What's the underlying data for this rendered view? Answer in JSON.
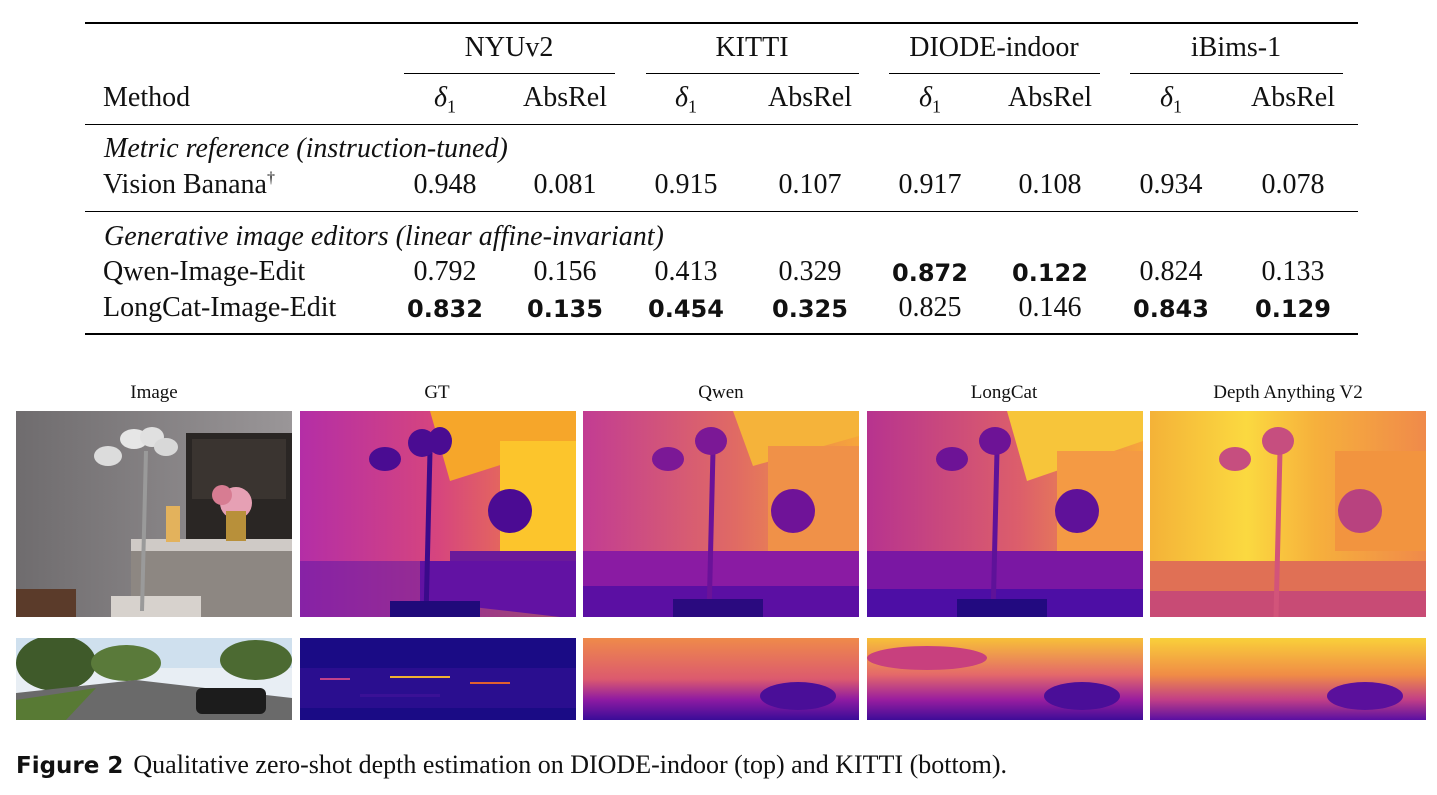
{
  "table": {
    "method_header": "Method",
    "groups": [
      "NYUv2",
      "KITTI",
      "DIODE-indoor",
      "iBims-1"
    ],
    "metric_delta_symbol": "δ",
    "metric_delta_subscript": "1",
    "metric_absrel": "AbsRel",
    "sections": [
      {
        "title": "Metric reference (instruction-tuned)",
        "rows": [
          {
            "method": "Vision Banana",
            "dagger": "†",
            "values": [
              "0.948",
              "0.081",
              "0.915",
              "0.107",
              "0.917",
              "0.108",
              "0.934",
              "0.078"
            ],
            "bold": [
              false,
              false,
              false,
              false,
              false,
              false,
              false,
              false
            ]
          }
        ]
      },
      {
        "title": "Generative image editors (linear affine-invariant)",
        "rows": [
          {
            "method": "Qwen-Image-Edit",
            "dagger": "",
            "values": [
              "0.792",
              "0.156",
              "0.413",
              "0.329",
              "0.872",
              "0.122",
              "0.824",
              "0.133"
            ],
            "bold": [
              false,
              false,
              false,
              false,
              true,
              true,
              false,
              false
            ]
          },
          {
            "method": "LongCat-Image-Edit",
            "dagger": "",
            "values": [
              "0.832",
              "0.135",
              "0.454",
              "0.325",
              "0.825",
              "0.146",
              "0.843",
              "0.129"
            ],
            "bold": [
              true,
              true,
              true,
              true,
              false,
              false,
              true,
              true
            ]
          }
        ]
      }
    ]
  },
  "figure": {
    "column_titles": [
      "Image",
      "GT",
      "Qwen",
      "LongCat",
      "Depth Anything V2"
    ],
    "rows": [
      {
        "dataset": "DIODE-indoor",
        "panels": [
          "photo",
          "gt-depth",
          "qwen-depth",
          "longcat-depth",
          "dav2-depth"
        ]
      },
      {
        "dataset": "KITTI",
        "panels": [
          "photo",
          "gt-depth",
          "qwen-depth",
          "longcat-depth",
          "dav2-depth"
        ]
      }
    ],
    "colors": {
      "near": "#0d0887",
      "mid": "#cc4778",
      "far": "#f0f921"
    }
  },
  "caption": {
    "label": "Figure 2",
    "text": "Qualitative zero-shot depth estimation on DIODE-indoor (top) and KITTI (bottom)."
  }
}
